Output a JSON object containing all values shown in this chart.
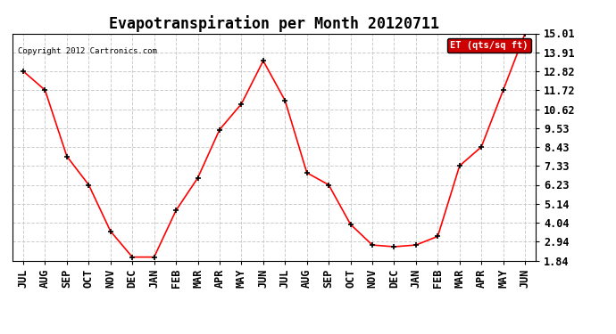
{
  "title": "Evapotranspiration per Month 20120711",
  "copyright": "Copyright 2012 Cartronics.com",
  "legend_label": "ET (qts/sq ft)",
  "x_labels": [
    "JUL",
    "AUG",
    "SEP",
    "OCT",
    "NOV",
    "DEC",
    "JAN",
    "FEB",
    "MAR",
    "APR",
    "MAY",
    "JUN",
    "JUL",
    "AUG",
    "SEP",
    "OCT",
    "NOV",
    "DEC",
    "JAN",
    "FEB",
    "MAR",
    "APR",
    "MAY",
    "JUN"
  ],
  "y_values": [
    12.82,
    11.72,
    7.88,
    6.23,
    3.54,
    2.04,
    2.04,
    4.74,
    6.63,
    9.43,
    10.92,
    13.42,
    11.12,
    6.93,
    6.23,
    3.94,
    2.74,
    2.64,
    2.74,
    3.24,
    7.33,
    8.43,
    11.72,
    15.01
  ],
  "y_ticks": [
    1.84,
    2.94,
    4.04,
    5.14,
    6.23,
    7.33,
    8.43,
    9.53,
    10.62,
    11.72,
    12.82,
    13.91,
    15.01
  ],
  "ylim": [
    1.84,
    15.01
  ],
  "line_color": "#ff0000",
  "marker_color": "#000000",
  "background_color": "#ffffff",
  "grid_color": "#cccccc",
  "title_fontsize": 12,
  "tick_fontsize": 8.5,
  "legend_bg": "#cc0000",
  "legend_text_color": "#ffffff"
}
